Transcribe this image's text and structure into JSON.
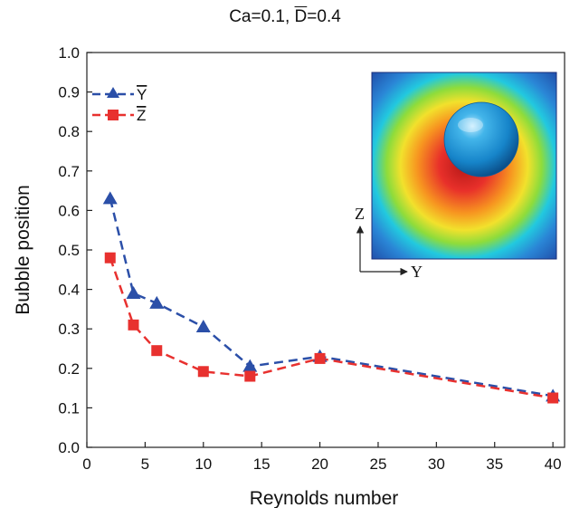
{
  "chart_data": {
    "type": "line",
    "title": {
      "prefix": "Ca=0.1, ",
      "d_symbol": "D",
      "suffix": "=0.4"
    },
    "xlabel": "Reynolds number",
    "ylabel": "Bubble position",
    "xlim": [
      0,
      41
    ],
    "ylim": [
      0.0,
      1.0
    ],
    "x_ticks": [
      0,
      5,
      10,
      15,
      20,
      25,
      30,
      35,
      40
    ],
    "y_ticks": [
      0.0,
      0.1,
      0.2,
      0.3,
      0.4,
      0.5,
      0.6,
      0.7,
      0.8,
      0.9,
      1.0
    ],
    "x_tick_labels": [
      "0",
      "5",
      "10",
      "15",
      "20",
      "25",
      "30",
      "35",
      "40"
    ],
    "y_tick_labels": [
      "0.0",
      "0.1",
      "0.2",
      "0.3",
      "0.4",
      "0.5",
      "0.6",
      "0.7",
      "0.8",
      "0.9",
      "1.0"
    ],
    "grid": false,
    "legend_position": "top-left",
    "series": [
      {
        "name": "Y",
        "name_overline": true,
        "color": "#2b4fa8",
        "marker": "triangle",
        "line_style": "dashed",
        "x": [
          2,
          4,
          6,
          10,
          14,
          20,
          40
        ],
        "y": [
          0.63,
          0.39,
          0.365,
          0.305,
          0.205,
          0.23,
          0.13
        ]
      },
      {
        "name": "Z",
        "name_overline": true,
        "color": "#e8312f",
        "marker": "square",
        "line_style": "dashed",
        "x": [
          2,
          4,
          6,
          10,
          14,
          20,
          40
        ],
        "y": [
          0.48,
          0.31,
          0.245,
          0.192,
          0.18,
          0.225,
          0.125
        ]
      }
    ],
    "inset": {
      "description_icon": "bubble-in-square-channel-colormap",
      "axis_labels": {
        "vertical": "Z",
        "horizontal": "Y"
      },
      "colors": {
        "edge": "#1e3fa0",
        "mid": "#1fc7e0",
        "green": "#8fdc3a",
        "yellow": "#f3e32a",
        "orange": "#f5921e",
        "core": "#c41c1c",
        "bubble": "#1a9bd8"
      }
    }
  }
}
